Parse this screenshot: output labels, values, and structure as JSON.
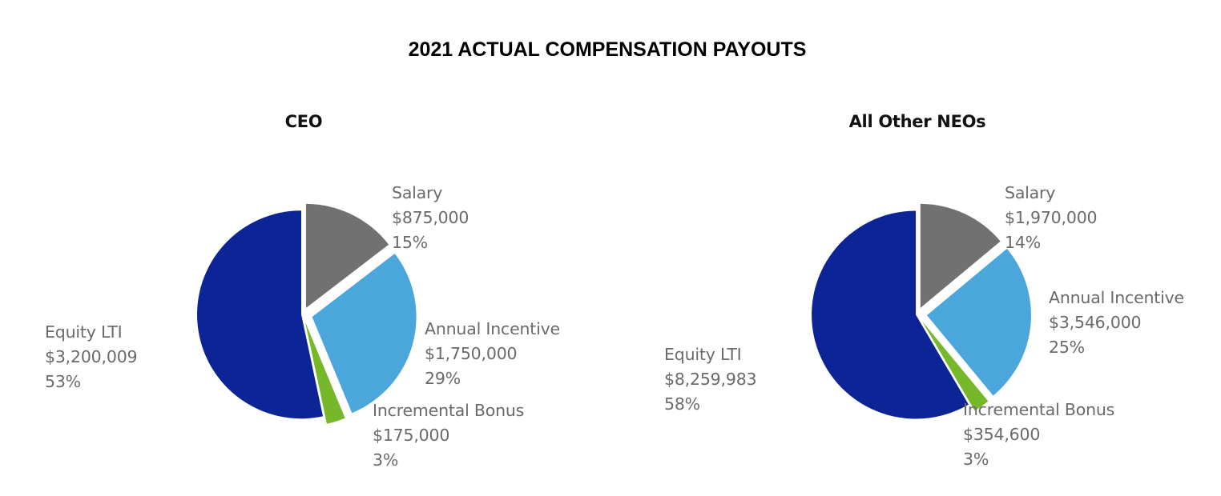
{
  "title": "2021 ACTUAL COMPENSATION PAYOUTS",
  "colors": {
    "Salary": "#717171",
    "Annual Incentive": "#4ba6dc",
    "Incremental Bonus": "#76b82a",
    "Equity LTI": "#0c2496"
  },
  "chart_data": [
    {
      "type": "pie",
      "title": "CEO",
      "slices": [
        {
          "label": "Salary",
          "amount": "$875,000",
          "pct_label": "15%",
          "value": 875000,
          "color": "#717171"
        },
        {
          "label": "Annual Incentive",
          "amount": "$1,750,000",
          "pct_label": "29%",
          "value": 1750000,
          "color": "#4ba6dc"
        },
        {
          "label": "Incremental Bonus",
          "amount": "$175,000",
          "pct_label": "3%",
          "value": 175000,
          "color": "#76b82a"
        },
        {
          "label": "Equity LTI",
          "amount": "$3,200,009",
          "pct_label": "53%",
          "value": 3200009,
          "color": "#0c2496"
        }
      ]
    },
    {
      "type": "pie",
      "title": "All Other NEOs",
      "slices": [
        {
          "label": "Salary",
          "amount": "$1,970,000",
          "pct_label": "14%",
          "value": 1970000,
          "color": "#717171"
        },
        {
          "label": "Annual Incentive",
          "amount": "$3,546,000",
          "pct_label": "25%",
          "value": 3546000,
          "color": "#4ba6dc"
        },
        {
          "label": "Incremental Bonus",
          "amount": "$354,600",
          "pct_label": "3%",
          "value": 354600,
          "color": "#76b82a"
        },
        {
          "label": "Equity LTI",
          "amount": "$8,259,983",
          "pct_label": "58%",
          "value": 8259983,
          "color": "#0c2496"
        }
      ]
    }
  ]
}
